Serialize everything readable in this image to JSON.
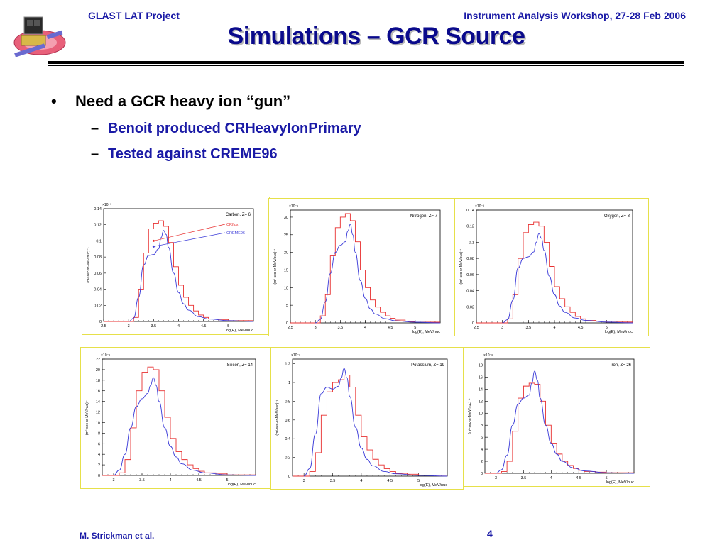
{
  "header": {
    "left": "GLAST LAT Project",
    "right": "Instrument Analysis Workshop, 27-28 Feb 2006",
    "title": "Simulations – GCR Source"
  },
  "bullets": {
    "main": {
      "marker": "•",
      "text": "Need a GCR heavy ion “gun”"
    },
    "sub": [
      {
        "marker": "–",
        "text": "Benoit produced CRHeavyIonPrimary"
      },
      {
        "marker": "–",
        "text": "Tested against CREME96"
      }
    ]
  },
  "footer": {
    "author": "M. Strickman et al.",
    "page": "4"
  },
  "colors": {
    "histogram": "#e83030",
    "curve": "#3a3ad8",
    "text_blue": "#1a1aa6"
  },
  "chart_data": [
    {
      "type": "line",
      "title": "Carbon, Z= 6",
      "xlabel": "log(E), MeV/nuc",
      "ylabel": "(m²-sec-sr-MeV/nuc)⁻¹",
      "exponent": "×10⁻³",
      "xlim": [
        2.5,
        5.5
      ],
      "ylim": [
        0,
        0.14
      ],
      "xticks": [
        "2.5",
        "3",
        "3.5",
        "4",
        "4.5",
        "5"
      ],
      "yticks": [
        "0",
        "0.02",
        "0.04",
        "0.06",
        "0.08",
        "0.1",
        "0.12",
        "0.14"
      ],
      "legend": [
        {
          "name": "CRflux",
          "color": "#e83030"
        },
        {
          "name": "CREME96",
          "color": "#3a3ad8"
        }
      ],
      "series": [
        {
          "name": "CRflux",
          "kind": "histogram",
          "x": [
            2.5,
            3.0,
            3.1,
            3.2,
            3.3,
            3.4,
            3.5,
            3.6,
            3.7,
            3.8,
            3.9,
            4.0,
            4.1,
            4.2,
            4.3,
            4.4,
            4.5,
            4.6,
            4.8,
            5.0,
            5.5
          ],
          "values": [
            0,
            0.0,
            0.005,
            0.04,
            0.085,
            0.115,
            0.122,
            0.125,
            0.118,
            0.098,
            0.068,
            0.045,
            0.03,
            0.02,
            0.013,
            0.008,
            0.005,
            0.003,
            0.002,
            0.001,
            0
          ]
        },
        {
          "name": "CREME96",
          "kind": "curve",
          "x": [
            3.0,
            3.1,
            3.2,
            3.3,
            3.4,
            3.5,
            3.6,
            3.65,
            3.7,
            3.75,
            3.8,
            3.9,
            4.0,
            4.1,
            4.2,
            4.4,
            4.6,
            5.0,
            5.5
          ],
          "values": [
            0,
            0.004,
            0.03,
            0.07,
            0.082,
            0.083,
            0.09,
            0.104,
            0.113,
            0.108,
            0.092,
            0.06,
            0.036,
            0.022,
            0.014,
            0.006,
            0.003,
            0.001,
            0
          ]
        }
      ]
    },
    {
      "type": "line",
      "title": "Nitrogen, Z= 7",
      "xlabel": "log(E), MeV/nuc",
      "ylabel": "(m²-sec-sr-MeV/nuc)⁻¹",
      "exponent": "×10⁻⁶",
      "xlim": [
        2.5,
        5.5
      ],
      "ylim": [
        0,
        32
      ],
      "xticks": [
        "2.5",
        "3",
        "3.5",
        "4",
        "4.5",
        "5"
      ],
      "yticks": [
        "0",
        "5",
        "10",
        "15",
        "20",
        "25",
        "30"
      ],
      "series": [
        {
          "name": "CRflux",
          "kind": "histogram",
          "x": [
            2.5,
            3.0,
            3.1,
            3.2,
            3.3,
            3.4,
            3.5,
            3.6,
            3.7,
            3.8,
            3.9,
            4.0,
            4.1,
            4.2,
            4.3,
            4.4,
            4.5,
            4.6,
            4.8,
            5.0,
            5.5
          ],
          "values": [
            0,
            0.0,
            2,
            8,
            19,
            27,
            30,
            31,
            29,
            23,
            15,
            10,
            6.5,
            4.5,
            3,
            2,
            1.3,
            0.8,
            0.4,
            0.2,
            0
          ]
        },
        {
          "name": "CREME96",
          "kind": "curve",
          "x": [
            3.0,
            3.1,
            3.2,
            3.3,
            3.4,
            3.5,
            3.6,
            3.65,
            3.7,
            3.75,
            3.8,
            3.9,
            4.0,
            4.1,
            4.2,
            4.4,
            4.6,
            5.0,
            5.5
          ],
          "values": [
            0,
            1,
            6,
            14,
            20,
            22,
            23,
            26,
            28,
            25,
            20,
            12,
            7,
            4,
            2.5,
            1.2,
            0.6,
            0.2,
            0
          ]
        }
      ]
    },
    {
      "type": "line",
      "title": "Oxygen, Z= 8",
      "xlabel": "log(E), MeV/nuc",
      "ylabel": "(m²-sec-sr-MeV/nuc)⁻¹",
      "exponent": "×10⁻³",
      "xlim": [
        2.5,
        5.5
      ],
      "ylim": [
        0,
        0.14
      ],
      "xticks": [
        "2.5",
        "3",
        "3.5",
        "4",
        "4.5",
        "5"
      ],
      "yticks": [
        "0",
        "0.02",
        "0.04",
        "0.06",
        "0.08",
        "0.1",
        "0.12",
        "0.14"
      ],
      "series": [
        {
          "name": "CRflux",
          "kind": "histogram",
          "x": [
            2.5,
            3.0,
            3.1,
            3.2,
            3.3,
            3.4,
            3.5,
            3.6,
            3.7,
            3.8,
            3.9,
            4.0,
            4.1,
            4.2,
            4.3,
            4.4,
            4.5,
            4.6,
            4.8,
            5.0,
            5.5
          ],
          "values": [
            0,
            0.0,
            0.005,
            0.035,
            0.08,
            0.112,
            0.122,
            0.125,
            0.12,
            0.1,
            0.07,
            0.045,
            0.03,
            0.02,
            0.013,
            0.008,
            0.005,
            0.003,
            0.002,
            0.001,
            0
          ]
        },
        {
          "name": "CREME96",
          "kind": "curve",
          "x": [
            3.0,
            3.1,
            3.2,
            3.3,
            3.4,
            3.5,
            3.6,
            3.65,
            3.7,
            3.75,
            3.8,
            3.9,
            4.0,
            4.1,
            4.2,
            4.4,
            4.6,
            5.0,
            5.5
          ],
          "values": [
            0,
            0.004,
            0.028,
            0.068,
            0.08,
            0.082,
            0.088,
            0.1,
            0.111,
            0.105,
            0.09,
            0.058,
            0.035,
            0.021,
            0.013,
            0.006,
            0.003,
            0.001,
            0
          ]
        }
      ]
    },
    {
      "type": "line",
      "title": "Silicon, Z= 14",
      "xlabel": "log(E), MeV/nuc",
      "ylabel": "(m²-sec-sr-MeV/nuc)⁻¹",
      "exponent": "×10⁻⁶",
      "xlim": [
        2.8,
        5.5
      ],
      "ylim": [
        0,
        22
      ],
      "xticks": [
        "3",
        "3.5",
        "4",
        "4.5",
        "5"
      ],
      "yticks": [
        "0",
        "2",
        "4",
        "6",
        "8",
        "10",
        "12",
        "14",
        "16",
        "18",
        "20",
        "22"
      ],
      "series": [
        {
          "name": "CRflux",
          "kind": "histogram",
          "x": [
            2.8,
            3.1,
            3.2,
            3.3,
            3.4,
            3.5,
            3.6,
            3.7,
            3.8,
            3.9,
            4.0,
            4.1,
            4.2,
            4.3,
            4.4,
            4.5,
            4.6,
            4.8,
            5.0,
            5.5
          ],
          "values": [
            0,
            0.5,
            3,
            9,
            16,
            19.5,
            20.5,
            20,
            16,
            11,
            7,
            4.5,
            3,
            2,
            1.3,
            0.8,
            0.5,
            0.3,
            0.1,
            0
          ]
        },
        {
          "name": "CREME96",
          "kind": "curve",
          "x": [
            3.0,
            3.1,
            3.2,
            3.3,
            3.4,
            3.5,
            3.6,
            3.65,
            3.7,
            3.75,
            3.8,
            3.9,
            4.0,
            4.1,
            4.2,
            4.4,
            4.6,
            5.0,
            5.5
          ],
          "values": [
            0,
            1,
            4,
            9,
            13,
            14.5,
            15.5,
            17,
            18.5,
            17,
            14,
            9,
            5.5,
            3.5,
            2.2,
            1,
            0.5,
            0.1,
            0
          ]
        }
      ]
    },
    {
      "type": "line",
      "title": "Potassium, Z= 19",
      "xlabel": "log(E), MeV/nuc",
      "ylabel": "(m²-sec-sr-MeV/nuc)⁻¹",
      "exponent": "×10⁻⁶",
      "xlim": [
        2.8,
        5.5
      ],
      "ylim": [
        0,
        1.25
      ],
      "xticks": [
        "3",
        "3.5",
        "4",
        "4.5",
        "5"
      ],
      "yticks": [
        "0",
        "0.2",
        "0.4",
        "0.6",
        "0.8",
        "1",
        "1.2"
      ],
      "series": [
        {
          "name": "CRflux",
          "kind": "histogram",
          "x": [
            2.8,
            3.1,
            3.2,
            3.3,
            3.4,
            3.5,
            3.6,
            3.7,
            3.8,
            3.9,
            4.0,
            4.1,
            4.2,
            4.3,
            4.4,
            4.5,
            4.6,
            4.8,
            5.0,
            5.5
          ],
          "values": [
            0,
            0.05,
            0.25,
            0.65,
            0.9,
            1.0,
            1.03,
            1.08,
            0.95,
            0.65,
            0.42,
            0.28,
            0.18,
            0.12,
            0.08,
            0.05,
            0.03,
            0.02,
            0.01,
            0
          ]
        },
        {
          "name": "CREME96",
          "kind": "curve",
          "x": [
            3.0,
            3.1,
            3.2,
            3.3,
            3.4,
            3.5,
            3.6,
            3.65,
            3.7,
            3.75,
            3.8,
            3.9,
            4.0,
            4.1,
            4.2,
            4.4,
            4.6,
            5.0,
            5.5
          ],
          "values": [
            0,
            0.08,
            0.45,
            0.88,
            0.95,
            0.93,
            0.96,
            1.05,
            1.15,
            1.05,
            0.85,
            0.52,
            0.3,
            0.18,
            0.11,
            0.05,
            0.025,
            0.008,
            0
          ]
        }
      ]
    },
    {
      "type": "line",
      "title": "Iron, Z= 26",
      "xlabel": "log(E), MeV/nuc",
      "ylabel": "(m²-sec-sr-MeV/nuc)⁻¹",
      "exponent": "×10⁻⁶",
      "xlim": [
        2.8,
        5.5
      ],
      "ylim": [
        0,
        19
      ],
      "xticks": [
        "3",
        "3.5",
        "4",
        "4.5",
        "5"
      ],
      "yticks": [
        "0",
        "2",
        "4",
        "6",
        "8",
        "10",
        "12",
        "14",
        "16",
        "18"
      ],
      "series": [
        {
          "name": "CRflux",
          "kind": "histogram",
          "x": [
            2.8,
            3.1,
            3.2,
            3.3,
            3.4,
            3.5,
            3.6,
            3.7,
            3.8,
            3.9,
            4.0,
            4.1,
            4.2,
            4.3,
            4.4,
            4.5,
            4.6,
            4.8,
            5.0,
            5.5
          ],
          "values": [
            0,
            0.3,
            2,
            7,
            12.5,
            14.5,
            15,
            14.8,
            12,
            8,
            5,
            3.2,
            2,
            1.3,
            0.8,
            0.5,
            0.3,
            0.2,
            0.1,
            0
          ]
        },
        {
          "name": "CREME96",
          "kind": "curve",
          "x": [
            3.0,
            3.1,
            3.2,
            3.3,
            3.4,
            3.5,
            3.6,
            3.65,
            3.7,
            3.75,
            3.8,
            3.9,
            4.0,
            4.1,
            4.2,
            4.4,
            4.6,
            5.0,
            5.5
          ],
          "values": [
            0,
            0.6,
            3,
            8,
            11.5,
            12.5,
            13,
            15,
            17,
            15.5,
            12.5,
            8,
            5,
            3.2,
            2,
            0.9,
            0.4,
            0.1,
            0
          ]
        }
      ]
    }
  ]
}
